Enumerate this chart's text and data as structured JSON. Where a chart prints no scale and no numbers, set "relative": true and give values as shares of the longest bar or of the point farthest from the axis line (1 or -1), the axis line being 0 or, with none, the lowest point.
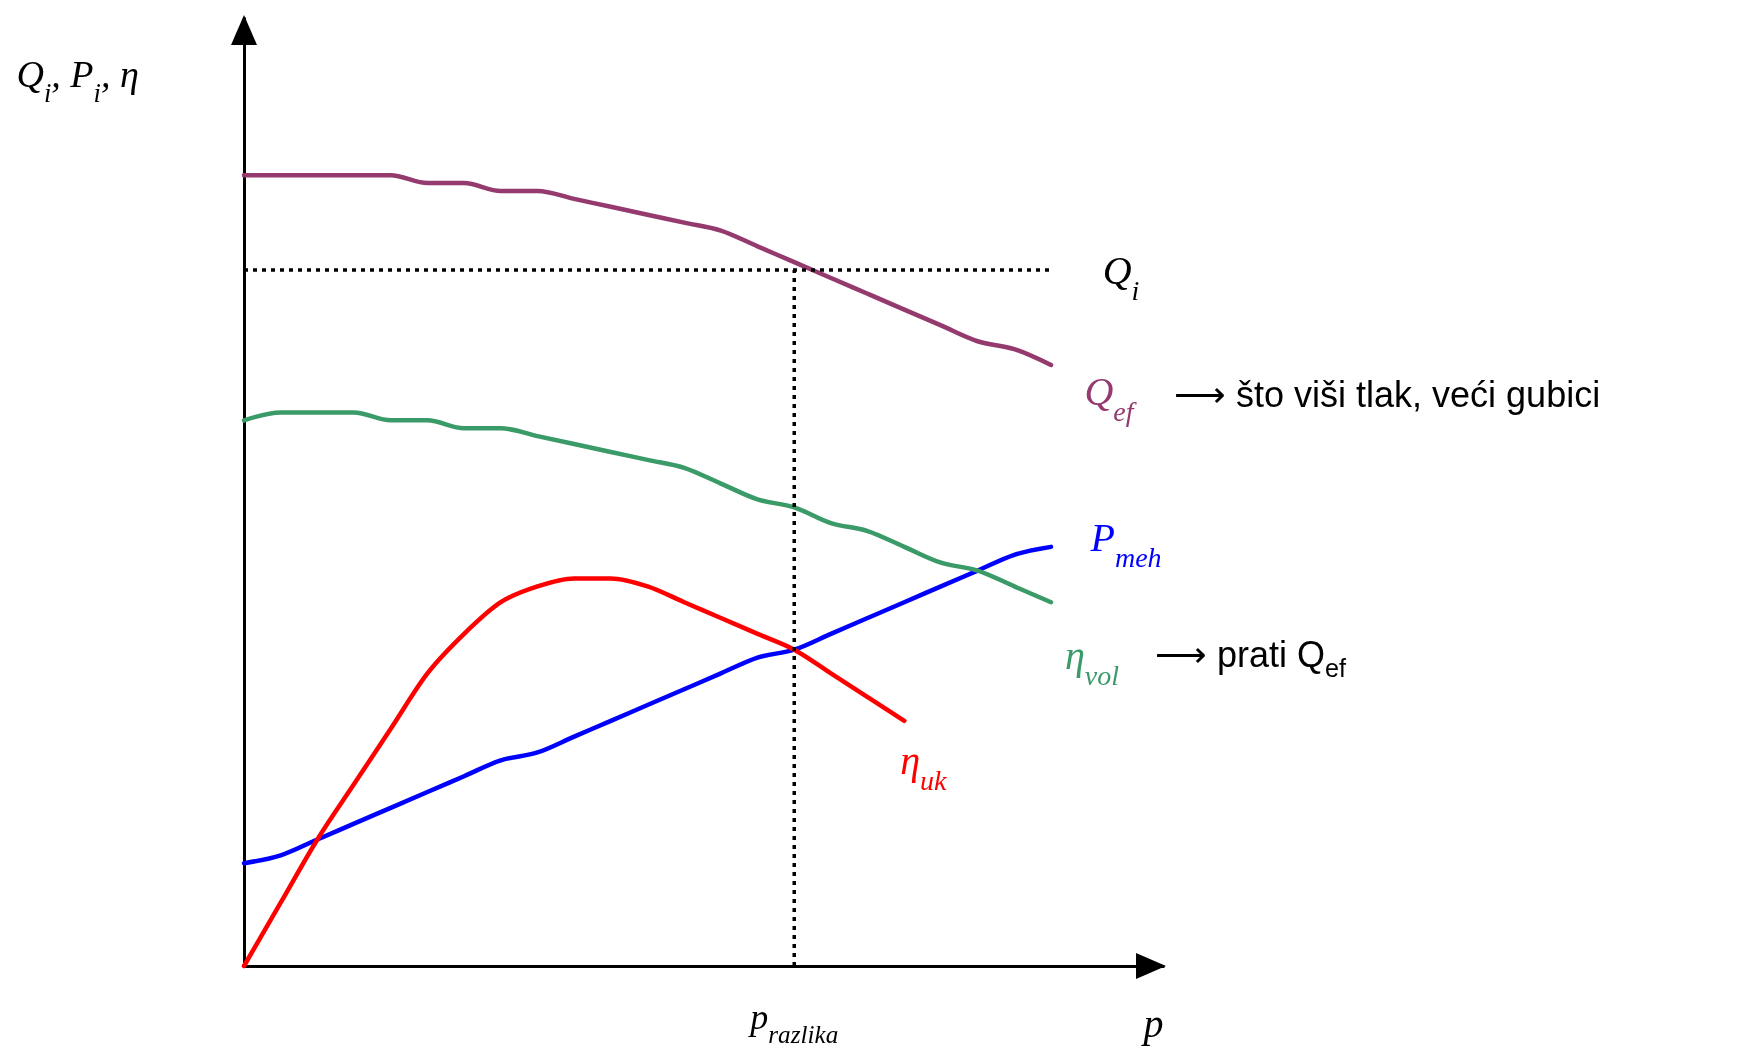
{
  "chart_data": {
    "type": "line",
    "relative": true,
    "xlabel": "p",
    "ylabel": "Q$_{i}$, P$_{i}$, η",
    "categories": [
      null,
      null,
      null,
      null,
      null,
      null,
      null,
      null,
      null,
      null,
      null,
      null,
      null,
      null,
      null,
      null,
      null,
      null,
      null,
      null,
      null,
      null,
      null
    ],
    "series": [
      {
        "name": "Q$_{ef}$",
        "color": "#943a6e",
        "values": [
          1.0,
          1.0,
          1.0,
          1.0,
          1.0,
          0.99,
          0.99,
          0.98,
          0.98,
          0.97,
          0.96,
          0.95,
          0.94,
          0.93,
          0.91,
          0.89,
          0.87,
          0.85,
          0.83,
          0.81,
          0.79,
          0.78,
          0.76
        ]
      },
      {
        "name": "P$_{meh}$",
        "color": "#0000ff",
        "values": [
          0.13,
          0.14,
          0.16,
          0.18,
          0.2,
          0.22,
          0.24,
          0.26,
          0.27,
          0.29,
          0.31,
          0.33,
          0.35,
          0.37,
          0.39,
          0.4,
          0.42,
          0.44,
          0.46,
          0.48,
          0.5,
          0.52,
          0.53
        ]
      },
      {
        "name": "η$_{vol}$",
        "color": "#3a9a68",
        "values": [
          0.69,
          0.7,
          0.7,
          0.7,
          0.69,
          0.69,
          0.68,
          0.68,
          0.67,
          0.66,
          0.65,
          0.64,
          0.63,
          0.61,
          0.59,
          0.58,
          0.56,
          0.55,
          0.53,
          0.51,
          0.5,
          0.48,
          0.46
        ]
      },
      {
        "name": "η$_{uk}$",
        "color": "#ff0000",
        "values": [
          0,
          0.08,
          0.16,
          0.23,
          0.3,
          0.37,
          0.42,
          0.46,
          0.48,
          0.49,
          0.49,
          0.48,
          0.46,
          0.44,
          0.42,
          0.4,
          0.37,
          0.34,
          0.31,
          null,
          null,
          null,
          null
        ]
      }
    ],
    "ref_lines": [
      {
        "axis": "y",
        "value": 0.88,
        "label": "Q$_{i}$",
        "color": "#000000",
        "line_style": "dotted"
      }
    ],
    "annotations": [
      "⟶ što viši tlak, veći gubici",
      "⟶ prati Q$_{ef}$",
      "p$_{razlika}$"
    ]
  }
}
